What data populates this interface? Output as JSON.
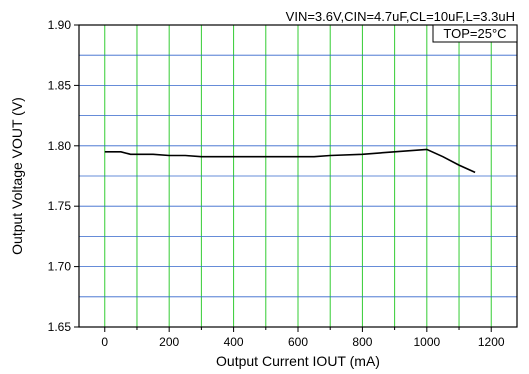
{
  "chart_data": {
    "type": "line",
    "title": "",
    "xlabel": "Output Current IOUT (mA)",
    "ylabel": "Output Voltage VOUT (V)",
    "xlim": [
      -80,
      1280
    ],
    "ylim": [
      1.65,
      1.9
    ],
    "xticks": [
      0,
      200,
      400,
      600,
      800,
      1000,
      1200
    ],
    "xtick_labels": [
      "0",
      "200",
      "400",
      "600",
      "800",
      "1000",
      "1200"
    ],
    "xgrid": [
      0,
      100,
      200,
      300,
      400,
      500,
      600,
      700,
      800,
      900,
      1000,
      1100,
      1200
    ],
    "yticks": [
      1.65,
      1.7,
      1.75,
      1.8,
      1.85,
      1.9
    ],
    "ytick_labels": [
      "1.65",
      "1.70",
      "1.75",
      "1.80",
      "1.85",
      "1.90"
    ],
    "ygrid": [
      1.65,
      1.675,
      1.7,
      1.725,
      1.75,
      1.775,
      1.8,
      1.825,
      1.85,
      1.875,
      1.9
    ],
    "grid": true,
    "x_grid_color": "#33cc33",
    "y_grid_color": "#3366cc",
    "series": [
      {
        "color": "#000000",
        "x": [
          0,
          50,
          80,
          100,
          150,
          200,
          250,
          300,
          400,
          500,
          600,
          650,
          700,
          800,
          900,
          1000,
          1050,
          1100,
          1150
        ],
        "y": [
          1.795,
          1.795,
          1.793,
          1.793,
          1.793,
          1.792,
          1.792,
          1.791,
          1.791,
          1.791,
          1.791,
          1.791,
          1.792,
          1.793,
          1.795,
          1.797,
          1.791,
          1.784,
          1.778
        ]
      }
    ],
    "annotations": [
      "VIN=3.6V,CIN=4.7uF,CL=10uF,L=3.3uH",
      "TOP=25°C"
    ]
  }
}
